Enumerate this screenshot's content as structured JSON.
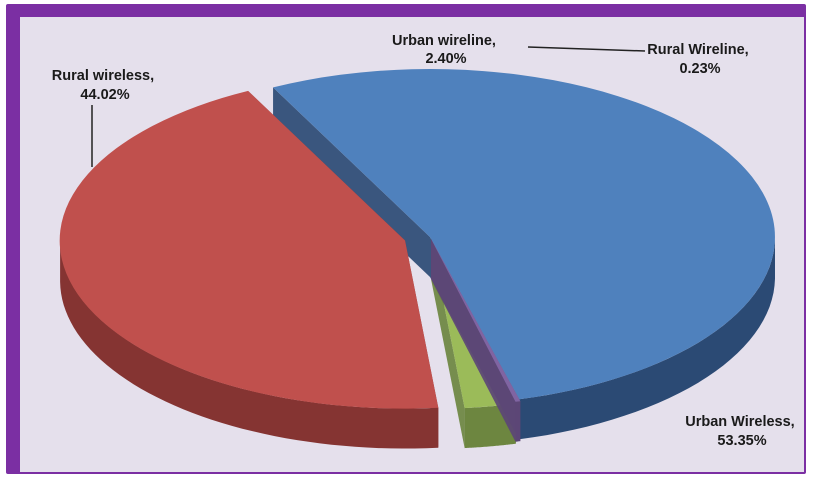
{
  "chart_data": {
    "type": "pie",
    "title": "",
    "slices": [
      {
        "name": "Urban Wireless",
        "value": 53.35,
        "label": "Urban Wireless,",
        "pct": "53.35%",
        "color": "#4f81bd",
        "side": "#2b4a74",
        "explode": 0
      },
      {
        "name": "Rural wireless",
        "value": 44.02,
        "label": "Rural wireless,",
        "pct": "44.02%",
        "color": "#c0504d",
        "side": "#853432",
        "explode": 26
      },
      {
        "name": "Urban wireline",
        "value": 2.4,
        "label": "Urban wireline,",
        "pct": "2.40%",
        "color": "#9bbb59",
        "side": "#6d8640",
        "explode": 8
      },
      {
        "name": "Rural Wireline",
        "value": 0.23,
        "label": "Rural Wireline,",
        "pct": "0.23%",
        "color": "#8064a2",
        "side": "#5c4676",
        "explode": 4
      }
    ],
    "style": "3d-exploded",
    "legend": "none"
  }
}
